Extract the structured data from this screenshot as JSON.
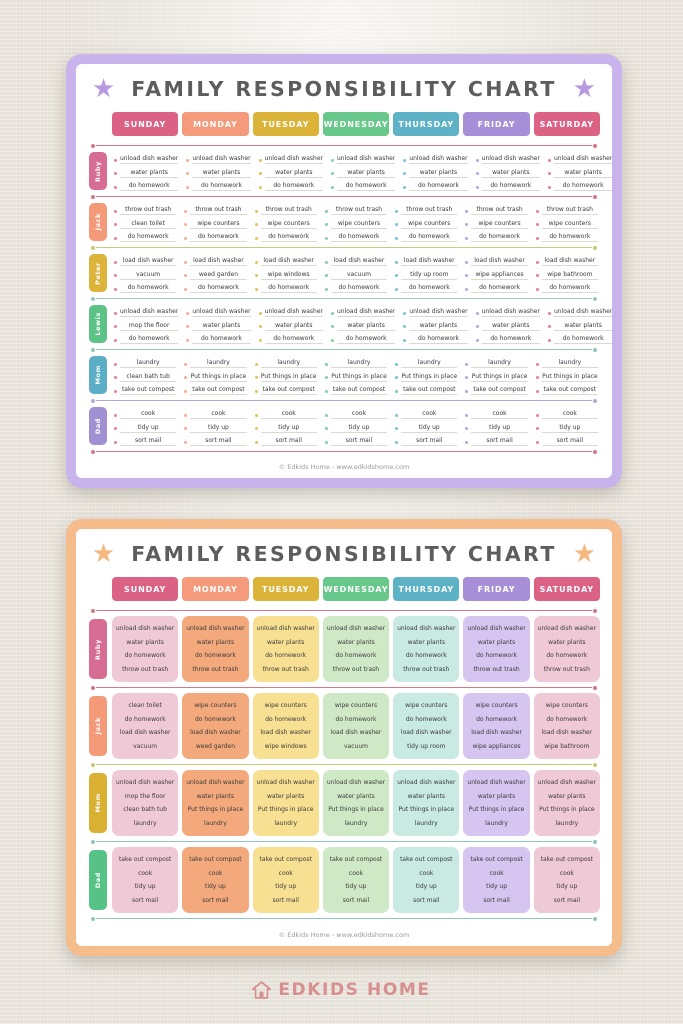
{
  "days": [
    {
      "label": "SUNDAY",
      "color": "#db6285",
      "cell_color": "#f0c9d6"
    },
    {
      "label": "MONDAY",
      "color": "#f59a7a",
      "cell_color": "#f3a97c"
    },
    {
      "label": "TUESDAY",
      "color": "#dcb339",
      "cell_color": "#f8e093"
    },
    {
      "label": "WEDNESDAY",
      "color": "#68c78b",
      "cell_color": "#cfe9c6"
    },
    {
      "label": "THURSDAY",
      "color": "#5eb2c5",
      "cell_color": "#c9e9e3"
    },
    {
      "label": "FRIDAY",
      "color": "#a68fd6",
      "cell_color": "#d5c5f0"
    },
    {
      "label": "SATURDAY",
      "color": "#db6285",
      "cell_color": "#f0c9d6"
    }
  ],
  "chart1": {
    "title": "FAMILY RESPONSIBILITY CHART",
    "border_color": "#c9b3ec",
    "star_color": "#b79ae0",
    "footer": "© Edkids Home - www.edkidshome.com",
    "rule_colors": [
      "#c44d5e",
      "#c44d5e",
      "#b8b84e",
      "#7ab8b0",
      "#6fb3ab",
      "#9b8fc4",
      "#c44d5e"
    ],
    "rows": [
      {
        "name": "Ruby",
        "color": "#d76d92",
        "tasks": [
          [
            "unload dish washer",
            "water plants",
            "do homework"
          ],
          [
            "unload dish washer",
            "water plants",
            "do homework"
          ],
          [
            "unload dish washer",
            "water plants",
            "do homework"
          ],
          [
            "unload dish washer",
            "water plants",
            "do homework"
          ],
          [
            "unload dish washer",
            "water plants",
            "do homework"
          ],
          [
            "unload dish washer",
            "water plants",
            "do homework"
          ],
          [
            "unload dish washer",
            "water plants",
            "do homework"
          ]
        ]
      },
      {
        "name": "Jack",
        "color": "#f49a78",
        "tasks": [
          [
            "throw out trash",
            "clean toilet",
            "do homework"
          ],
          [
            "throw out trash",
            "wipe counters",
            "do homework"
          ],
          [
            "throw out trash",
            "wipe counters",
            "do homework"
          ],
          [
            "throw out trash",
            "wipe counters",
            "do homework"
          ],
          [
            "throw out trash",
            "wipe counters",
            "do homework"
          ],
          [
            "throw out trash",
            "wipe counters",
            "do homework"
          ],
          [
            "throw out trash",
            "wipe counters",
            "do homework"
          ]
        ]
      },
      {
        "name": "Peter",
        "color": "#ddb33a",
        "tasks": [
          [
            "load dish washer",
            "vacuum",
            "do homework"
          ],
          [
            "load dish washer",
            "weed garden",
            "do homework"
          ],
          [
            "load dish washer",
            "wipe windows",
            "do homework"
          ],
          [
            "load dish washer",
            "vacuum",
            "do homework"
          ],
          [
            "load dish washer",
            "tidy up room",
            "do homework"
          ],
          [
            "load dish washer",
            "wipe appliances",
            "do homework"
          ],
          [
            "load dish washer",
            "wipe bathroom",
            "do homework"
          ]
        ]
      },
      {
        "name": "Lewis",
        "color": "#5bc386",
        "tasks": [
          [
            "unload dish washer",
            "mop the floor",
            "do homework"
          ],
          [
            "unload dish washer",
            "water plants",
            "do homework"
          ],
          [
            "unload dish washer",
            "water plants",
            "do homework"
          ],
          [
            "unload dish washer",
            "water plants",
            "do homework"
          ],
          [
            "unload dish washer",
            "water plants",
            "do homework"
          ],
          [
            "unload dish washer",
            "water plants",
            "do homework"
          ],
          [
            "unload dish washer",
            "water plants",
            "do homework"
          ]
        ]
      },
      {
        "name": "Mom",
        "color": "#5cadc6",
        "tasks": [
          [
            "laundry",
            "clean bath tub",
            "take out compost"
          ],
          [
            "laundry",
            "Put things in place",
            "take out compost"
          ],
          [
            "laundry",
            "Put things in place",
            "take out compost"
          ],
          [
            "laundry",
            "Put things in place",
            "take out compost"
          ],
          [
            "laundry",
            "Put things in place",
            "take out compost"
          ],
          [
            "laundry",
            "Put things in place",
            "take out compost"
          ],
          [
            "laundry",
            "Put things in place",
            "take out compost"
          ]
        ]
      },
      {
        "name": "Dad",
        "color": "#a191d2",
        "tasks": [
          [
            "cook",
            "tidy up",
            "sort mail"
          ],
          [
            "cook",
            "tidy up",
            "sort mail"
          ],
          [
            "cook",
            "tidy up",
            "sort mail"
          ],
          [
            "cook",
            "tidy up",
            "sort mail"
          ],
          [
            "cook",
            "tidy up",
            "sort mail"
          ],
          [
            "cook",
            "tidy up",
            "sort mail"
          ],
          [
            "cook",
            "tidy up",
            "sort mail"
          ]
        ]
      }
    ]
  },
  "chart2": {
    "title": "FAMILY RESPONSIBILITY CHART",
    "border_color": "#f6bd8c",
    "star_color": "#f5b87e",
    "footer": "© Edkids Home - www.edkidshome.com",
    "rule_colors": [
      "#c44d5e",
      "#c44d5e",
      "#b8b84e",
      "#6fb3ab",
      "#6fb3ab"
    ],
    "rows": [
      {
        "name": "Ruby",
        "color": "#d76d92",
        "tasks": [
          [
            "unload dish washer",
            "water plants",
            "do homework",
            "throw out trash"
          ],
          [
            "unload dish washer",
            "water plants",
            "do homework",
            "throw out trash"
          ],
          [
            "unload dish washer",
            "water plants",
            "do homework",
            "throw out trash"
          ],
          [
            "unload dish washer",
            "water plants",
            "do homework",
            "throw out trash"
          ],
          [
            "unload dish washer",
            "water plants",
            "do homework",
            "throw out trash"
          ],
          [
            "unload dish washer",
            "water plants",
            "do homework",
            "throw out trash"
          ],
          [
            "unload dish washer",
            "water plants",
            "do homework",
            "throw out trash"
          ]
        ]
      },
      {
        "name": "Jack",
        "color": "#f49a78",
        "tasks": [
          [
            "clean toilet",
            "do homework",
            "load dish washer",
            "vacuum"
          ],
          [
            "wipe counters",
            "do homework",
            "load dish washer",
            "weed garden"
          ],
          [
            "wipe counters",
            "do homework",
            "load dish washer",
            "wipe windows"
          ],
          [
            "wipe counters",
            "do homework",
            "load dish washer",
            "vacuum"
          ],
          [
            "wipe counters",
            "do homework",
            "load dish washer",
            "tidy up room"
          ],
          [
            "wipe counters",
            "do homework",
            "load dish washer",
            "wipe appliances"
          ],
          [
            "wipe counters",
            "do homework",
            "load dish washer",
            "wipe bathroom"
          ]
        ]
      },
      {
        "name": "Mom",
        "color": "#d9b032",
        "tasks": [
          [
            "unload dish washer",
            "mop the floor",
            "clean bath tub",
            "laundry"
          ],
          [
            "unload dish washer",
            "water plants",
            "Put things in place",
            "laundry"
          ],
          [
            "unload dish washer",
            "water plants",
            "Put things in place",
            "laundry"
          ],
          [
            "unload dish washer",
            "water plants",
            "Put things in place",
            "laundry"
          ],
          [
            "unload dish washer",
            "water plants",
            "Put things in place",
            "laundry"
          ],
          [
            "unload dish washer",
            "water plants",
            "Put things in place",
            "laundry"
          ],
          [
            "unload dish washer",
            "water plants",
            "Put things in place",
            "laundry"
          ]
        ]
      },
      {
        "name": "Dad",
        "color": "#57c285",
        "tasks": [
          [
            "take out compost",
            "cook",
            "tidy up",
            "sort mail"
          ],
          [
            "take out compost",
            "cook",
            "tidy up",
            "sort mail"
          ],
          [
            "take out compost",
            "cook",
            "tidy up",
            "sort mail"
          ],
          [
            "take out compost",
            "cook",
            "tidy up",
            "sort mail"
          ],
          [
            "take out compost",
            "cook",
            "tidy up",
            "sort mail"
          ],
          [
            "take out compost",
            "cook",
            "tidy up",
            "sort mail"
          ],
          [
            "take out compost",
            "cook",
            "tidy up",
            "sort mail"
          ]
        ]
      }
    ]
  },
  "brand": {
    "text": "EDKIDS HOME",
    "color": "#d88f8f",
    "icon": "home-icon"
  }
}
